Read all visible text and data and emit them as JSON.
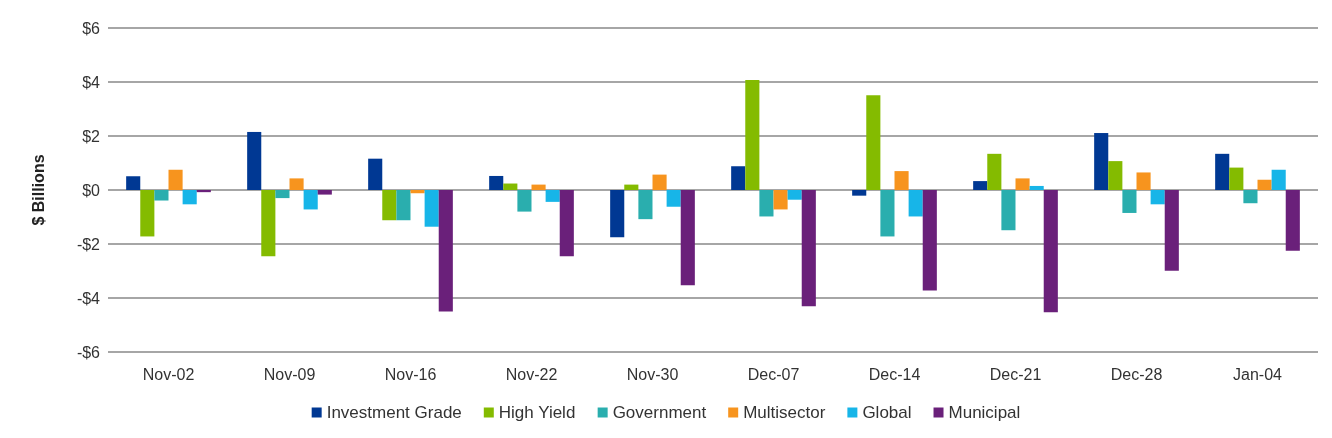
{
  "chart_data": {
    "type": "bar",
    "ylabel": "$ Billions",
    "categories": [
      "Nov-02",
      "Nov-09",
      "Nov-16",
      "Nov-22",
      "Nov-30",
      "Dec-07",
      "Dec-14",
      "Dec-21",
      "Dec-28",
      "Jan-04"
    ],
    "series": [
      {
        "name": "Investment Grade",
        "color": "#003893",
        "values": [
          0.51,
          2.15,
          1.16,
          0.52,
          -1.75,
          0.88,
          -0.21,
          0.33,
          2.11,
          1.34
        ]
      },
      {
        "name": "High Yield",
        "color": "#84bb00",
        "values": [
          -1.72,
          -2.45,
          -1.12,
          0.24,
          0.2,
          4.07,
          3.51,
          1.34,
          1.07,
          0.83
        ]
      },
      {
        "name": "Government",
        "color": "#2aaeae",
        "values": [
          -0.39,
          -0.3,
          -1.12,
          -0.8,
          -1.08,
          -0.98,
          -1.72,
          -1.49,
          -0.85,
          -0.49
        ]
      },
      {
        "name": "Multisector",
        "color": "#f7941e",
        "values": [
          0.75,
          0.43,
          -0.12,
          0.2,
          0.57,
          -0.72,
          0.7,
          0.43,
          0.65,
          0.38
        ]
      },
      {
        "name": "Global",
        "color": "#17b5e8",
        "values": [
          -0.53,
          -0.72,
          -1.36,
          -0.44,
          -0.62,
          -0.36,
          -0.98,
          0.15,
          -0.53,
          0.75
        ]
      },
      {
        "name": "Municipal",
        "color": "#6a207a",
        "values": [
          -0.08,
          -0.17,
          -4.5,
          -2.45,
          -3.53,
          -4.31,
          -3.72,
          -4.53,
          -2.99,
          -2.25
        ]
      }
    ],
    "ylim": [
      -6,
      6
    ],
    "yticks": [
      {
        "value": -6,
        "label": "-$6"
      },
      {
        "value": -4,
        "label": "-$4"
      },
      {
        "value": -2,
        "label": "-$2"
      },
      {
        "value": 0,
        "label": "$0"
      },
      {
        "value": 2,
        "label": "$2"
      },
      {
        "value": 4,
        "label": "$4"
      },
      {
        "value": 6,
        "label": "$6"
      }
    ],
    "grid": "y",
    "legend": "bottom"
  }
}
